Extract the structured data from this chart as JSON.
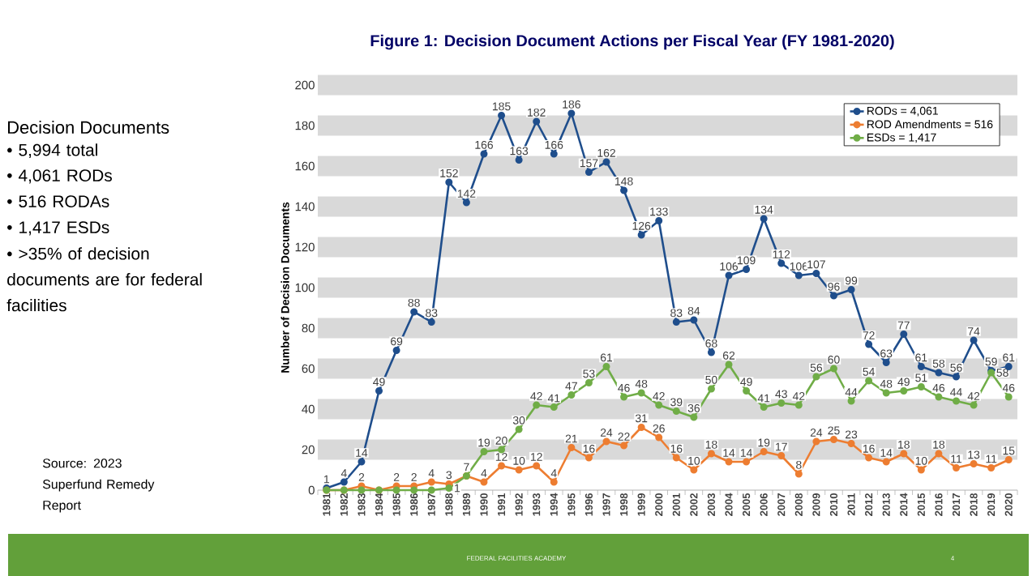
{
  "chart_data": {
    "type": "line",
    "title": "Figure 1: Decision Document Actions per Fiscal Year (FY 1981-2020)",
    "ylabel": "Number of Decision Documents",
    "categories": [
      "1981",
      "1982",
      "1983",
      "1984",
      "1985",
      "1986",
      "1987",
      "1988",
      "1989",
      "1990",
      "1991",
      "1992",
      "1993",
      "1994",
      "1995",
      "1996",
      "1997",
      "1998",
      "1999",
      "2000",
      "2001",
      "2002",
      "2003",
      "2004",
      "2005",
      "2006",
      "2007",
      "2008",
      "2009",
      "2010",
      "2011",
      "2012",
      "2013",
      "2014",
      "2015",
      "2016",
      "2017",
      "2018",
      "2019",
      "2020"
    ],
    "series": [
      {
        "name": "RODs = 4,061",
        "color": "#1f4e8c",
        "values": [
          1,
          4,
          14,
          49,
          69,
          88,
          83,
          152,
          142,
          166,
          185,
          163,
          182,
          166,
          186,
          157,
          162,
          148,
          126,
          133,
          83,
          84,
          68,
          106,
          109,
          134,
          112,
          106,
          107,
          96,
          99,
          72,
          63,
          77,
          61,
          58,
          56,
          74,
          59,
          61
        ],
        "value_labels": [
          "1",
          "4",
          "14",
          "49",
          "69",
          "88",
          "83",
          "152",
          "142",
          "166",
          "185",
          "163",
          "182",
          "166",
          "186",
          "157",
          "162",
          "148",
          "126",
          "133",
          "83",
          "84",
          "68",
          "106",
          "109",
          "134",
          "112",
          "106",
          "107",
          "96",
          "99",
          "72",
          "63",
          "77",
          "61",
          "58",
          "56",
          "74",
          "59",
          "61"
        ]
      },
      {
        "name": "ROD Amendments = 516",
        "color": "#ed7d31",
        "values": [
          0,
          0,
          2,
          0,
          2,
          2,
          4,
          3,
          7,
          4,
          12,
          10,
          12,
          4,
          21,
          16,
          24,
          22,
          31,
          26,
          16,
          10,
          18,
          14,
          14,
          19,
          17,
          8,
          24,
          25,
          23,
          16,
          14,
          18,
          10,
          18,
          11,
          13,
          11,
          15
        ],
        "value_labels": [
          null,
          null,
          "2",
          null,
          "2",
          "2",
          "4",
          "3",
          null,
          "4",
          "12",
          "10",
          "12",
          "4",
          "21",
          "16",
          "24",
          "22",
          "31",
          "26",
          "16",
          "10",
          "18",
          "14",
          "14",
          "19",
          "17",
          "8",
          "24",
          "25",
          "23",
          "16",
          "14",
          "18",
          "10",
          "18",
          "11",
          "13",
          "11",
          "15"
        ]
      },
      {
        "name": "ESDs = 1,417",
        "color": "#70ad47",
        "values": [
          0,
          0,
          0,
          0,
          0,
          0,
          0,
          1,
          7,
          19,
          20,
          30,
          42,
          41,
          47,
          53,
          61,
          46,
          48,
          42,
          39,
          36,
          50,
          62,
          49,
          41,
          43,
          42,
          56,
          60,
          44,
          54,
          48,
          49,
          51,
          46,
          44,
          42,
          58,
          46
        ],
        "value_labels": [
          null,
          null,
          null,
          null,
          null,
          null,
          null,
          "1",
          "7",
          "19",
          "20",
          "30",
          "42",
          "41",
          "47",
          "53",
          "61",
          "46",
          "48",
          "42",
          "39",
          "36",
          "50",
          "62",
          "49",
          "41",
          "43",
          "42",
          "56",
          "60",
          "44",
          "54",
          "48",
          "49",
          "51",
          "46",
          "44",
          "42",
          "58",
          "46"
        ]
      }
    ],
    "ylim": [
      0,
      200
    ],
    "yticks": [
      0,
      20,
      40,
      60,
      80,
      100,
      120,
      140,
      160,
      180,
      200
    ],
    "grid": "y",
    "legend": "top right",
    "marker": "circle",
    "line_style": "solid",
    "annotations": [
      "Decision Documents",
      "• 5,994 total",
      "• 4,061 RODs",
      "• 516 RODAs",
      "• 1,417 ESDs",
      "• >35% of decision documents are for federal facilities",
      "Source: 2023 Superfund Remedy Report",
      "FEDERAL FACILITIES ACADEMY",
      "4"
    ]
  }
}
